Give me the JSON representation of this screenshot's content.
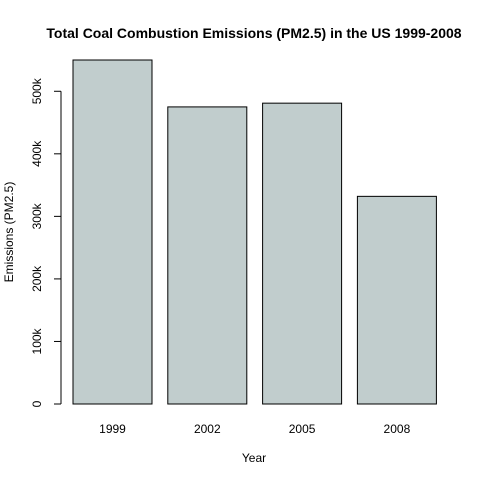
{
  "chart_data": {
    "type": "bar",
    "title": "Total Coal Combustion Emissions (PM2.5) in the US 1999-2008",
    "xlabel": "Year",
    "ylabel": "Emissions (PM2.5)",
    "categories": [
      "1999",
      "2002",
      "2005",
      "2008"
    ],
    "values": [
      550000,
      475000,
      481000,
      332000
    ],
    "ylim": [
      0,
      550000
    ],
    "yticks": [
      0,
      100000,
      200000,
      300000,
      400000,
      500000
    ],
    "ytick_labels": [
      "0",
      "100k",
      "200k",
      "300k",
      "400k",
      "500k"
    ],
    "grid": false,
    "legend": "none",
    "colors": {
      "bar_fill": "#c1cdcd",
      "bar_stroke": "#000000",
      "axis": "#000000",
      "text": "#000000"
    }
  }
}
